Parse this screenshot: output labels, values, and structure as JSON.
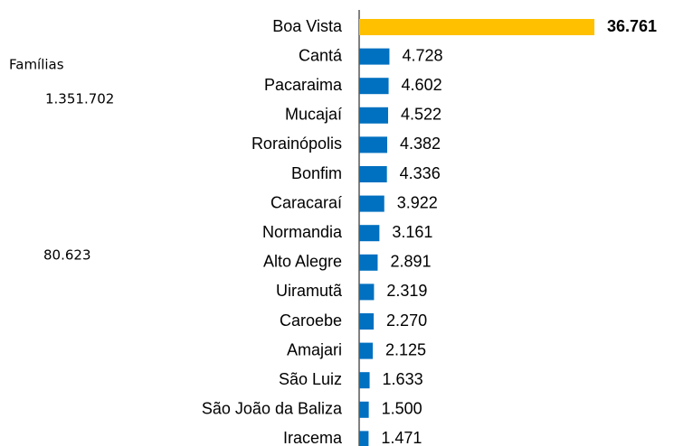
{
  "chart_data": {
    "type": "hbar",
    "annotations": [
      "Famílias",
      "1.351.702",
      "80.623"
    ],
    "categories": [
      "Boa Vista",
      "Cantá",
      "Pacaraima",
      "Mucajaí",
      "Rorainópolis",
      "Bonfim",
      "Caracaraí",
      "Normandia",
      "Alto Alegre",
      "Uiramutã",
      "Caroebe",
      "Amajari",
      "São Luiz",
      "São João da Baliza",
      "Iracema"
    ],
    "values": [
      36761,
      4728,
      4602,
      4522,
      4382,
      4336,
      3922,
      3161,
      2891,
      2319,
      2270,
      2125,
      1633,
      1500,
      1471
    ],
    "value_labels": [
      "36.761",
      "4.728",
      "4.602",
      "4.522",
      "4.382",
      "4.336",
      "3.922",
      "3.161",
      "2.891",
      "2.319",
      "2.270",
      "2.125",
      "1.633",
      "1.500",
      "1.471"
    ],
    "colors": [
      "#FFC000",
      "#0070C0",
      "#0070C0",
      "#0070C0",
      "#0070C0",
      "#0070C0",
      "#0070C0",
      "#0070C0",
      "#0070C0",
      "#0070C0",
      "#0070C0",
      "#0070C0",
      "#0070C0",
      "#0070C0",
      "#0070C0"
    ]
  }
}
